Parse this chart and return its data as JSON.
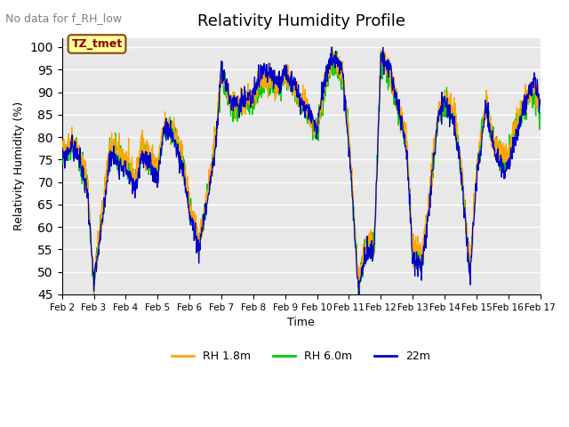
{
  "title": "Relativity Humidity Profile",
  "subtitle": "No data for f_RH_low",
  "xlabel": "Time",
  "ylabel": "Relativity Humidity (%)",
  "ylim": [
    45,
    102
  ],
  "yticks": [
    45,
    50,
    55,
    60,
    65,
    70,
    75,
    80,
    85,
    90,
    95,
    100
  ],
  "xtick_labels": [
    "Feb 2",
    "Feb 3",
    "Feb 4",
    "Feb 5",
    "Feb 6",
    "Feb 7",
    "Feb 8",
    "Feb 9",
    "Feb 10",
    "Feb 11",
    "Feb 12",
    "Feb 13",
    "Feb 14",
    "Feb 15",
    "Feb 16",
    "Feb 17"
  ],
  "legend_labels": [
    "RH 1.8m",
    "RH 6.0m",
    "22m"
  ],
  "colors": {
    "RH_1.8m": "#FFA500",
    "RH_6.0m": "#00CC00",
    "22m": "#0000CC",
    "bg_plot": "#E8E8E8",
    "annotation_box_bg": "#FFFF99",
    "annotation_box_edge": "#8B4513",
    "annotation_text": "#8B0000"
  },
  "annotation_text": "TZ_tmet",
  "grid_color": "#FFFFFF",
  "n_points": 1500,
  "xp": [
    0,
    0.3,
    0.5,
    0.8,
    1.0,
    1.3,
    1.5,
    2.0,
    2.3,
    2.5,
    2.8,
    3.0,
    3.2,
    3.5,
    3.8,
    4.0,
    4.3,
    4.8,
    5.0,
    5.3,
    5.5,
    5.8,
    6.0,
    6.3,
    6.8,
    7.0,
    7.5,
    8.0,
    8.3,
    8.5,
    8.8,
    9.0,
    9.3,
    9.5,
    9.8,
    10.0,
    10.3,
    10.8,
    11.0,
    11.3,
    11.5,
    11.8,
    12.0,
    12.3,
    12.5,
    12.8,
    13.0,
    13.3,
    13.5,
    13.8,
    14.0,
    14.3,
    14.8,
    15.0
  ],
  "yp_base": [
    76,
    79,
    77,
    70,
    47,
    65,
    78,
    75,
    70,
    78,
    75,
    73,
    82,
    82,
    74,
    65,
    56,
    78,
    94,
    88,
    87,
    88,
    88,
    93,
    91,
    94,
    88,
    81,
    93,
    97,
    93,
    80,
    47,
    55,
    57,
    97,
    93,
    80,
    55,
    53,
    65,
    85,
    88,
    85,
    75,
    50,
    72,
    88,
    80,
    75,
    75,
    84,
    91,
    85
  ],
  "yp_22m": [
    75,
    78,
    76,
    68,
    47,
    63,
    76,
    73,
    68,
    76,
    73,
    71,
    82,
    80,
    72,
    63,
    55,
    76,
    95,
    88,
    87,
    89,
    89,
    95,
    92,
    95,
    88,
    82,
    95,
    98,
    95,
    78,
    46,
    53,
    55,
    98,
    95,
    78,
    53,
    51,
    63,
    85,
    88,
    83,
    73,
    49,
    70,
    87,
    78,
    73,
    73,
    82,
    93,
    87
  ]
}
